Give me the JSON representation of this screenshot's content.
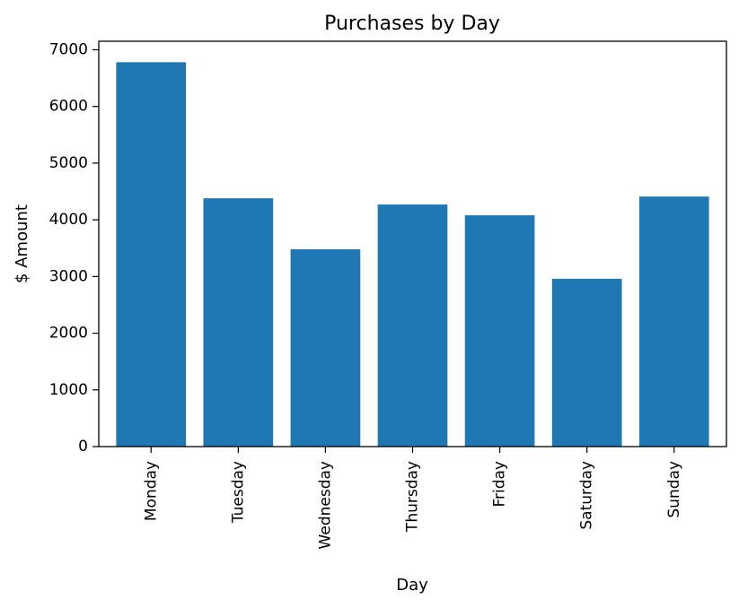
{
  "chart_data": {
    "type": "bar",
    "title": "Purchases by Day",
    "xlabel": "Day",
    "ylabel": "$ Amount",
    "categories": [
      "Monday",
      "Tuesday",
      "Wednesday",
      "Thursday",
      "Friday",
      "Saturday",
      "Sunday"
    ],
    "values": [
      6780,
      4380,
      3480,
      4270,
      4080,
      2960,
      4410
    ],
    "ylim": [
      0,
      7150
    ],
    "yticks": [
      0,
      1000,
      2000,
      3000,
      4000,
      5000,
      6000,
      7000
    ],
    "bar_color": "#1f77b4",
    "grid": false,
    "legend": "none"
  }
}
